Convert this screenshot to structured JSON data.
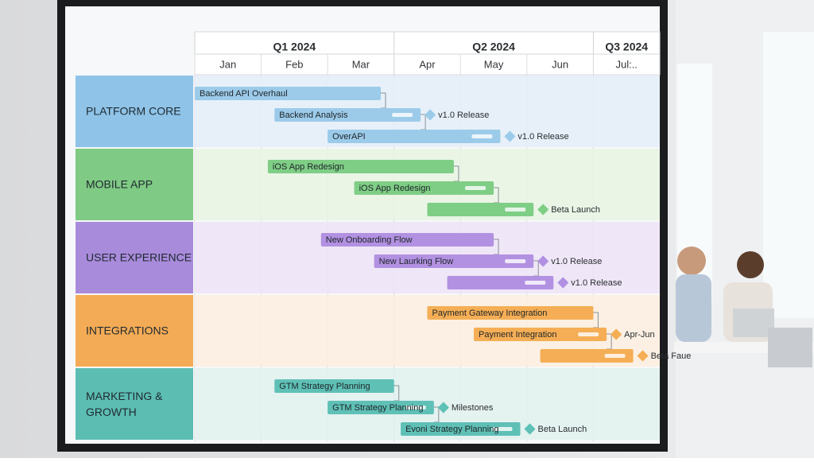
{
  "roadmap": {
    "quarters": [
      "Q1 2024",
      "Q2 2024",
      "Q3 2024"
    ],
    "months": [
      "Jan",
      "Feb",
      "Mar",
      "Apr",
      "May",
      "Jun",
      "Jul:.."
    ],
    "lanes": [
      {
        "name": "PLATFORM CORE",
        "color": "#8fc3e8",
        "bg": "#e4eff9",
        "bar": "#9ccbea",
        "tasks": [
          {
            "label": "Backend API Overhaul"
          },
          {
            "label": "Backend Analysis",
            "milestone": "v1.0 Release"
          },
          {
            "label": "OverAPI",
            "milestone": "v1.0 Release"
          }
        ]
      },
      {
        "name": "MOBILE APP",
        "color": "#7fca84",
        "bg": "#e7f4e3",
        "bar": "#7fce86",
        "tasks": [
          {
            "label": "iOS App Redesign"
          },
          {
            "label": "iOS App Redesign"
          },
          {
            "milestone": "Beta Launch"
          }
        ]
      },
      {
        "name": "USER EXPERIENCE",
        "color": "#a98bdc",
        "bg": "#ede4f7",
        "bar": "#b291e2",
        "tasks": [
          {
            "label": "New Onboarding Flow"
          },
          {
            "label": "New Laurking Flow",
            "milestone": "v1.0 Release"
          },
          {
            "milestone": "v1.0 Release"
          }
        ]
      },
      {
        "name": "INTEGRATIONS",
        "color": "#f4ab55",
        "bg": "#fbefdf",
        "bar": "#f5ae55",
        "tasks": [
          {
            "label": "Payment Gateway Integration"
          },
          {
            "label": "Payment Integration",
            "milestone": "Apr-Jun"
          },
          {
            "milestone": "Beta Faue"
          }
        ]
      },
      {
        "name": "MARKETING & GROWTH",
        "color": "#5cbdb3",
        "bg": "#e0f1ef",
        "bar": "#5fc0b6",
        "tasks": [
          {
            "label": "GTM Strategy Planning"
          },
          {
            "label": "GTM Strategy Planning",
            "milestone": "Milestones"
          },
          {
            "label": "Evoni Strategy Planning",
            "milestone": "Beta Launch"
          }
        ]
      }
    ]
  }
}
